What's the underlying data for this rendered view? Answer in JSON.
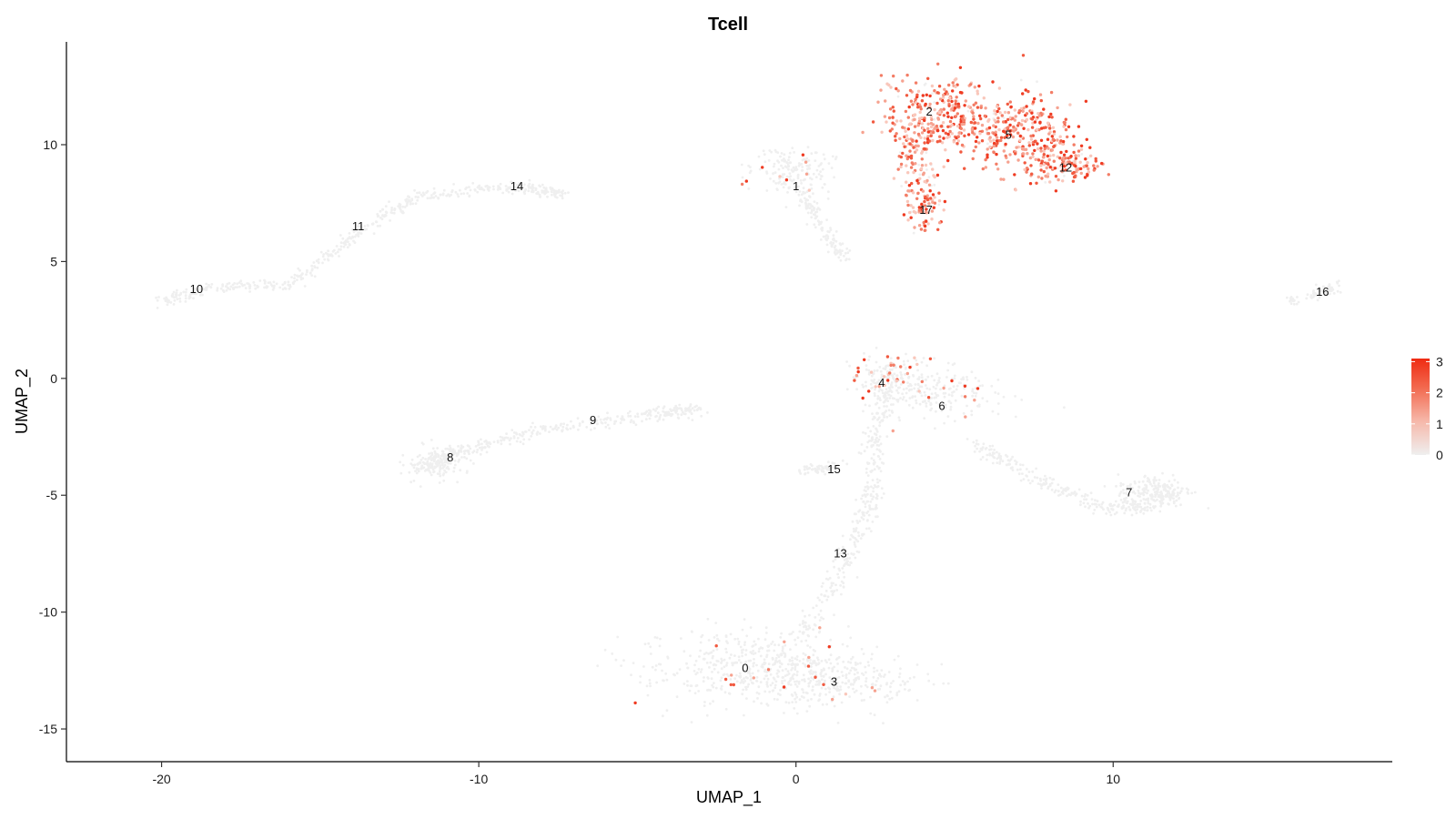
{
  "chart_data": {
    "type": "scatter",
    "title": "Tcell",
    "xlabel": "UMAP_1",
    "ylabel": "UMAP_2",
    "xlim": [
      -23,
      18.8
    ],
    "ylim": [
      -16.4,
      14.4
    ],
    "x_ticks": [
      -20,
      -10,
      0,
      10
    ],
    "y_ticks": [
      -15,
      -10,
      -5,
      0,
      5,
      10
    ],
    "grid": false,
    "colors": {
      "low": "#efefef",
      "high": "#ef2b12"
    },
    "legend": {
      "position": "right",
      "min": 0,
      "max": 3.1,
      "ticks": [
        0,
        1,
        2,
        3
      ]
    },
    "clusters": [
      {
        "label": "0",
        "x": -1.6,
        "y": -12.4
      },
      {
        "label": "1",
        "x": 0.0,
        "y": 8.2
      },
      {
        "label": "2",
        "x": 4.2,
        "y": 11.4
      },
      {
        "label": "3",
        "x": 1.2,
        "y": -13.0
      },
      {
        "label": "4",
        "x": 2.7,
        "y": -0.2
      },
      {
        "label": "5",
        "x": 6.7,
        "y": 10.4
      },
      {
        "label": "6",
        "x": 4.6,
        "y": -1.2
      },
      {
        "label": "7",
        "x": 10.5,
        "y": -4.9
      },
      {
        "label": "8",
        "x": -10.9,
        "y": -3.4
      },
      {
        "label": "9",
        "x": -6.4,
        "y": -1.8
      },
      {
        "label": "10",
        "x": -18.9,
        "y": 3.8
      },
      {
        "label": "11",
        "x": -13.8,
        "y": 6.5
      },
      {
        "label": "12",
        "x": 8.5,
        "y": 9.0
      },
      {
        "label": "13",
        "x": 1.4,
        "y": -7.5
      },
      {
        "label": "14",
        "x": -8.8,
        "y": 8.2
      },
      {
        "label": "15",
        "x": 1.2,
        "y": -3.9
      },
      {
        "label": "16",
        "x": 16.6,
        "y": 3.7
      },
      {
        "label": "17",
        "x": 4.1,
        "y": 7.2
      }
    ]
  }
}
